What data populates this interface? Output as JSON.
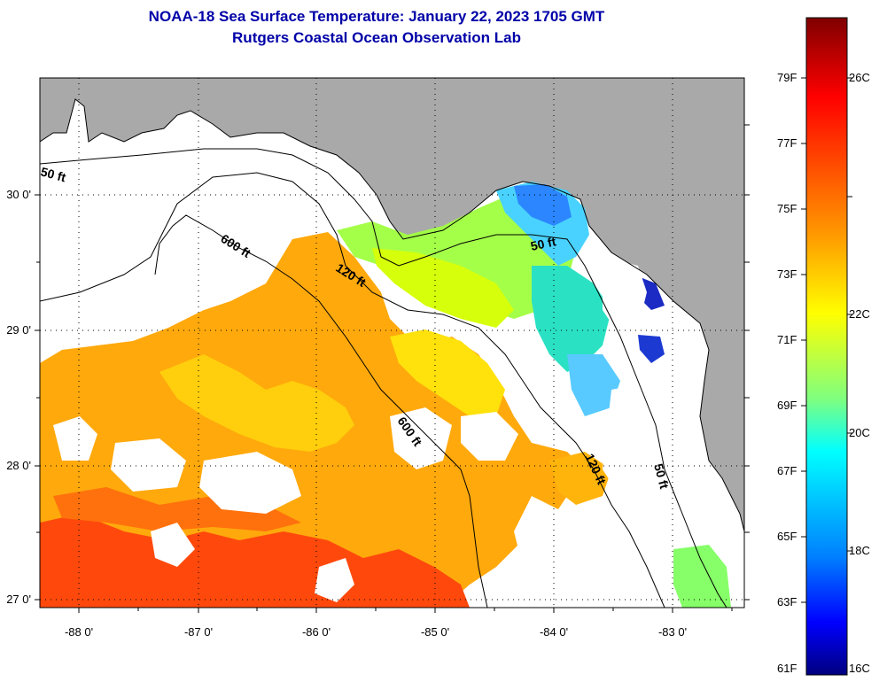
{
  "title": {
    "line1": "NOAA-18 Sea Surface Temperature:  January 22, 2023 1705 GMT",
    "line2": "Rutgers Coastal Ocean Observation Lab"
  },
  "map": {
    "lon_labels": [
      "-88 0'",
      "-87 0'",
      "-86 0'",
      "-85 0'",
      "-84 0'",
      "-83 0'"
    ],
    "lat_labels": [
      "30 0'",
      "29 0'",
      "28 0'",
      "27 0'"
    ],
    "contour_labels": [
      "50 ft",
      "600 ft",
      "120 ft",
      "50 ft",
      "600 ft",
      "120 ft",
      "50 ft"
    ],
    "colors": {
      "land": "#a9a9a9",
      "water_nodata": "#ffffff",
      "frame": "#000000"
    }
  },
  "colorbar": {
    "f_labels": [
      "79F",
      "77F",
      "75F",
      "73F",
      "71F",
      "69F",
      "67F",
      "65F",
      "63F",
      "61F"
    ],
    "c_labels": [
      "26C",
      "22C",
      "20C",
      "18C",
      "16C"
    ],
    "gradient": [
      "#7f0000",
      "#ff0000",
      "#ff7f00",
      "#ffff00",
      "#7fff7f",
      "#00ffff",
      "#007fff",
      "#0000ff",
      "#00007f"
    ]
  }
}
